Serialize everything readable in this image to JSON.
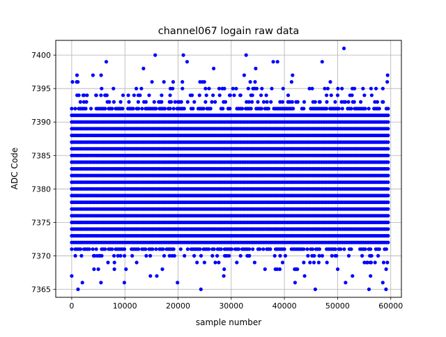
{
  "chart_data": {
    "type": "scatter",
    "title": "channel067 logain raw data",
    "xlabel": "sample number",
    "ylabel": "ADC Code",
    "xlim": [
      -3000,
      62000
    ],
    "ylim": [
      7363.8,
      7402.2
    ],
    "xticks": [
      0,
      10000,
      20000,
      30000,
      40000,
      50000,
      60000
    ],
    "xtick_labels": [
      "0",
      "10000",
      "20000",
      "30000",
      "40000",
      "50000",
      "60000"
    ],
    "yticks": [
      7365,
      7370,
      7375,
      7380,
      7385,
      7390,
      7395,
      7400
    ],
    "ytick_labels": [
      "7365",
      "7370",
      "7375",
      "7380",
      "7385",
      "7390",
      "7395",
      "7400"
    ],
    "grid": true,
    "marker_color": "#0000ff",
    "series": [
      {
        "x_range": [
          0,
          59500
        ],
        "dense_y_range": [
          7371,
          7392
        ],
        "outliers": [
          {
            "x": 1200,
            "y": 7365
          },
          {
            "x": 2000,
            "y": 7366
          },
          {
            "x": 5500,
            "y": 7366
          },
          {
            "x": 9900,
            "y": 7366
          },
          {
            "x": 19900,
            "y": 7366
          },
          {
            "x": 24300,
            "y": 7365
          },
          {
            "x": 42000,
            "y": 7366
          },
          {
            "x": 45800,
            "y": 7365
          },
          {
            "x": 51500,
            "y": 7366
          },
          {
            "x": 55900,
            "y": 7365
          },
          {
            "x": 58500,
            "y": 7366
          },
          {
            "x": 59100,
            "y": 7365
          },
          {
            "x": 0,
            "y": 7367
          },
          {
            "x": 14800,
            "y": 7367
          },
          {
            "x": 16000,
            "y": 7367
          },
          {
            "x": 28600,
            "y": 7367
          },
          {
            "x": 38300,
            "y": 7368
          },
          {
            "x": 43800,
            "y": 7367
          },
          {
            "x": 52800,
            "y": 7367
          },
          {
            "x": 56200,
            "y": 7367
          },
          {
            "x": 6500,
            "y": 7399
          },
          {
            "x": 15700,
            "y": 7400
          },
          {
            "x": 21000,
            "y": 7400
          },
          {
            "x": 21700,
            "y": 7399
          },
          {
            "x": 32800,
            "y": 7400
          },
          {
            "x": 37900,
            "y": 7399
          },
          {
            "x": 38700,
            "y": 7399
          },
          {
            "x": 47100,
            "y": 7399
          },
          {
            "x": 51200,
            "y": 7401
          },
          {
            "x": 26700,
            "y": 7398
          },
          {
            "x": 34600,
            "y": 7398
          },
          {
            "x": 13500,
            "y": 7398
          },
          {
            "x": 59400,
            "y": 7397
          },
          {
            "x": 1000,
            "y": 7397
          },
          {
            "x": 4000,
            "y": 7397
          }
        ]
      }
    ]
  }
}
